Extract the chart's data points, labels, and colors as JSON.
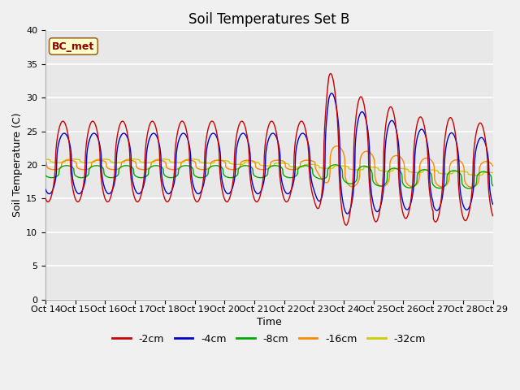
{
  "title": "Soil Temperatures Set B",
  "xlabel": "Time",
  "ylabel": "Soil Temperature (C)",
  "annotation": "BC_met",
  "ylim": [
    0,
    40
  ],
  "series_colors": [
    "#cc0000",
    "#0000cc",
    "#00aa00",
    "#ff8800",
    "#cccc00"
  ],
  "series_labels": [
    "-2cm",
    "-4cm",
    "-8cm",
    "-16cm",
    "-32cm"
  ],
  "bg_color": "#e8e8e8",
  "fig_bg_color": "#f0f0f0",
  "grid_color": "#ffffff",
  "title_fontsize": 12,
  "label_fontsize": 9,
  "tick_fontsize": 8,
  "legend_fontsize": 9,
  "annotation_color": "#8B0000",
  "annotation_bg": "#ffffcc",
  "annotation_edge": "#996633"
}
